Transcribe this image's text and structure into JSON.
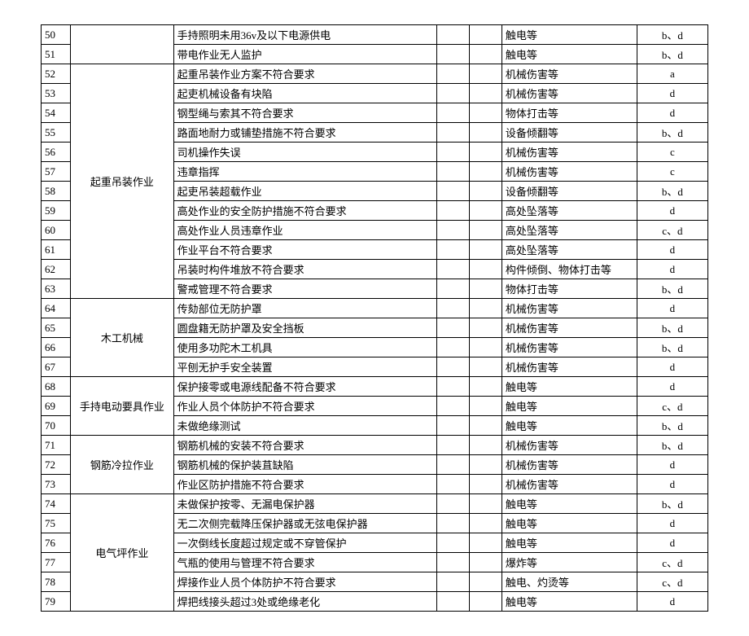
{
  "table": {
    "columns": [
      "idx",
      "category",
      "description",
      "empty1",
      "empty2",
      "hazard",
      "answer"
    ],
    "col_classes": [
      "col-idx",
      "col-cat",
      "col-desc",
      "col-e1",
      "col-e2",
      "col-haz",
      "col-ans"
    ],
    "groups": [
      {
        "category": "",
        "rows": [
          {
            "idx": "50",
            "description": "手持照明未用36v及以下电源供电",
            "hazard": "触电等",
            "answer": "b、d"
          },
          {
            "idx": "51",
            "description": "带电作业无人监护",
            "hazard": "触电等",
            "answer": "b、d"
          }
        ]
      },
      {
        "category": "起重吊装作业",
        "rows": [
          {
            "idx": "52",
            "description": "起重吊装作业方案不符合要求",
            "hazard": "机械伤害等",
            "answer": "a"
          },
          {
            "idx": "53",
            "description": "起吏机械设备有块陷",
            "hazard": "机械伤害等",
            "answer": "d"
          },
          {
            "idx": "54",
            "description": "钢型绳与索其不符合要求",
            "hazard": "物体打击等",
            "answer": "d"
          },
          {
            "idx": "55",
            "description": "路面地耐力或铺垫措施不符合要求",
            "hazard": "设备倾翻等",
            "answer": "b、d"
          },
          {
            "idx": "56",
            "description": "司机操作失误",
            "hazard": "机械伤害等",
            "answer": "c"
          },
          {
            "idx": "57",
            "description": "违章指挥",
            "hazard": "机械伤害等",
            "answer": "c"
          },
          {
            "idx": "58",
            "description": "起吏吊装超载作业",
            "hazard": "设备倾翻等",
            "answer": "b、d"
          },
          {
            "idx": "59",
            "description": "高处作业的安全防护措施不符合要求",
            "hazard": "高处坠落等",
            "answer": "d"
          },
          {
            "idx": "60",
            "description": "高处作业人员违章作业",
            "hazard": "高处坠落等",
            "answer": "c、d"
          },
          {
            "idx": "61",
            "description": "作业平台不符合要求",
            "hazard": "高处坠落等",
            "answer": "d"
          },
          {
            "idx": "62",
            "description": "吊装时构件堆放不符合要求",
            "hazard": "构件倾倒、物体打击等",
            "answer": "d"
          },
          {
            "idx": "63",
            "description": "警戒管理不符合要求",
            "hazard": "物体打击等",
            "answer": "b、d"
          }
        ]
      },
      {
        "category": "木工机械",
        "rows": [
          {
            "idx": "64",
            "description": "传劾部位无防护罩",
            "hazard": "机械伤害等",
            "answer": "d"
          },
          {
            "idx": "65",
            "description": "圆盘籍无防护罩及安全挡板",
            "hazard": "机械伤害等",
            "answer": "b、d"
          },
          {
            "idx": "66",
            "description": "使用多功陀木工机具",
            "hazard": "机械伤害等",
            "answer": "b、d"
          },
          {
            "idx": "67",
            "description": "平刨无护手安全装置",
            "hazard": "机械伤害等",
            "answer": "d"
          }
        ]
      },
      {
        "category": "手持电动要具作业",
        "rows": [
          {
            "idx": "68",
            "description": "保护接零或电源线配备不符合要求",
            "hazard": "触电等",
            "answer": "d"
          },
          {
            "idx": "69",
            "description": "作业人员个体防护不符合要求",
            "hazard": "触电等",
            "answer": "c、d"
          },
          {
            "idx": "70",
            "description": "未做绝缘测试",
            "hazard": "触电等",
            "answer": "b、d"
          }
        ]
      },
      {
        "category": "钢筋冷拉作业",
        "rows": [
          {
            "idx": "71",
            "description": "钢筋机械的安装不符合要求",
            "hazard": "机械伤害等",
            "answer": "b、d"
          },
          {
            "idx": "72",
            "description": "钢筋机械的保护装苴缺陷",
            "hazard": "机械伤害等",
            "answer": "d"
          },
          {
            "idx": "73",
            "description": "作业区防护措施不符合要求",
            "hazard": "机械伤害等",
            "answer": "d"
          }
        ]
      },
      {
        "category": "电气坪作业",
        "rows": [
          {
            "idx": "74",
            "description": "未做保护按零、无漏电保护器",
            "hazard": "触电等",
            "answer": "b、d"
          },
          {
            "idx": "75",
            "description": "无二次侧完载降压保护器或无弦电保护器",
            "hazard": "触电等",
            "answer": "d"
          },
          {
            "idx": "76",
            "description": "一次倒线长度超过规定或不穿管保护",
            "hazard": "触电等",
            "answer": "d"
          },
          {
            "idx": "77",
            "description": "气瓶的使用与管理不符合要求",
            "hazard": "爆炸等",
            "answer": "c、d"
          },
          {
            "idx": "78",
            "description": "焊接作业人员个体防护不符合要求",
            "hazard": "触电、灼烫等",
            "answer": "c、d"
          },
          {
            "idx": "79",
            "description": "焊把线接头超过3处或绝缘老化",
            "hazard": "触电等",
            "answer": "d"
          }
        ]
      }
    ]
  }
}
